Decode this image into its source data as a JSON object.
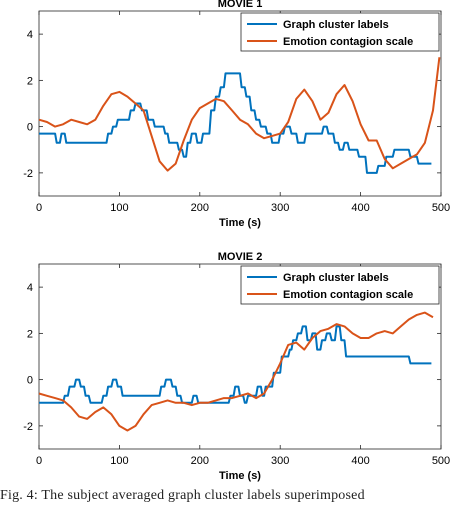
{
  "chart_data": [
    {
      "type": "line",
      "title": "MOVIE 1",
      "xlabel": "Time (s)",
      "ylabel": "",
      "xlim": [
        0,
        500
      ],
      "ylim": [
        -3,
        5
      ],
      "xticks": [
        "0",
        "100",
        "200",
        "300",
        "400",
        "500"
      ],
      "yticks": [
        "-2",
        "0",
        "2",
        "4"
      ],
      "legend_position": "top-right",
      "series": [
        {
          "name": "Graph cluster labels",
          "color": "#0072BD",
          "x": [
            0,
            20,
            22,
            26,
            28,
            32,
            34,
            40,
            80,
            84,
            86,
            90,
            92,
            96,
            98,
            112,
            114,
            118,
            120,
            126,
            128,
            134,
            136,
            142,
            144,
            155,
            157,
            160,
            162,
            172,
            174,
            178,
            180,
            183,
            185,
            188,
            190,
            195,
            197,
            202,
            204,
            212,
            214,
            218,
            220,
            224,
            226,
            230,
            232,
            250,
            252,
            256,
            258,
            262,
            264,
            268,
            270,
            274,
            276,
            282,
            284,
            288,
            290,
            298,
            300,
            304,
            306,
            312,
            314,
            320,
            322,
            330,
            332,
            352,
            354,
            358,
            360,
            366,
            368,
            372,
            374,
            378,
            380,
            384,
            386,
            396,
            398,
            406,
            408,
            420,
            422,
            430,
            432,
            440,
            442,
            460,
            462,
            470,
            472,
            478,
            480,
            488
          ],
          "y": [
            -0.3,
            -0.3,
            -0.7,
            -0.7,
            -0.3,
            -0.3,
            -0.7,
            -0.7,
            -0.7,
            -0.7,
            -0.3,
            -0.3,
            0.0,
            0.0,
            0.3,
            0.3,
            0.7,
            0.7,
            1.0,
            1.0,
            0.7,
            0.7,
            0.3,
            0.3,
            0.0,
            0.0,
            -0.3,
            -0.3,
            -0.7,
            -0.7,
            -1.0,
            -1.0,
            -1.3,
            -1.3,
            -0.7,
            -0.7,
            -0.3,
            -0.3,
            -0.7,
            -0.7,
            -0.3,
            -0.3,
            0.7,
            0.7,
            1.3,
            1.3,
            1.7,
            1.7,
            2.3,
            2.3,
            1.7,
            1.7,
            1.3,
            1.3,
            0.7,
            0.7,
            0.3,
            0.3,
            0.0,
            0.0,
            -0.3,
            -0.3,
            -0.7,
            -0.7,
            -0.3,
            -0.3,
            0.0,
            0.0,
            -0.3,
            -0.3,
            -0.7,
            -0.7,
            -0.3,
            -0.3,
            0.0,
            0.0,
            -0.3,
            -0.3,
            -0.7,
            -0.7,
            -1.0,
            -1.0,
            -0.7,
            -0.7,
            -1.0,
            -1.0,
            -1.3,
            -1.3,
            -2.0,
            -2.0,
            -1.7,
            -1.7,
            -1.3,
            -1.3,
            -1.0,
            -1.0,
            -1.3,
            -1.3,
            -1.6,
            -1.6,
            -1.6,
            -1.6
          ]
        },
        {
          "name": "Emotion contagion scale",
          "color": "#D95319",
          "x": [
            0,
            10,
            20,
            30,
            40,
            50,
            60,
            70,
            80,
            90,
            100,
            110,
            120,
            130,
            140,
            150,
            160,
            170,
            180,
            190,
            200,
            210,
            220,
            230,
            240,
            250,
            260,
            270,
            280,
            290,
            300,
            310,
            320,
            330,
            340,
            350,
            360,
            370,
            380,
            390,
            400,
            410,
            420,
            430,
            440,
            450,
            460,
            470,
            480,
            490,
            498
          ],
          "y": [
            0.3,
            0.2,
            0.0,
            0.1,
            0.3,
            0.2,
            0.1,
            0.3,
            0.9,
            1.4,
            1.5,
            1.3,
            1.0,
            0.7,
            -0.4,
            -1.5,
            -1.9,
            -1.6,
            -0.6,
            0.3,
            0.8,
            1.0,
            1.2,
            1.1,
            0.7,
            0.3,
            0.1,
            -0.3,
            -0.5,
            -0.4,
            -0.3,
            0.2,
            1.2,
            1.6,
            1.1,
            0.3,
            0.6,
            1.4,
            1.8,
            1.1,
            0.1,
            -0.6,
            -0.6,
            -1.4,
            -1.8,
            -1.6,
            -1.4,
            -1.2,
            -0.7,
            0.7,
            3.0
          ]
        }
      ]
    },
    {
      "type": "line",
      "title": "MOVIE 2",
      "xlabel": "Time (s)",
      "ylabel": "",
      "xlim": [
        0,
        500
      ],
      "ylim": [
        -3,
        5
      ],
      "xticks": [
        "0",
        "100",
        "200",
        "300",
        "400",
        "500"
      ],
      "yticks": [
        "-2",
        "0",
        "2",
        "4"
      ],
      "legend_position": "top-right",
      "series": [
        {
          "name": "Graph cluster labels",
          "color": "#0072BD",
          "x": [
            0,
            30,
            32,
            36,
            38,
            44,
            46,
            50,
            52,
            56,
            58,
            62,
            64,
            78,
            80,
            84,
            86,
            90,
            92,
            96,
            98,
            102,
            104,
            150,
            152,
            156,
            158,
            164,
            166,
            170,
            172,
            176,
            178,
            190,
            192,
            196,
            198,
            236,
            238,
            242,
            244,
            248,
            250,
            254,
            256,
            258,
            260,
            270,
            272,
            276,
            278,
            280,
            282,
            290,
            292,
            300,
            302,
            310,
            312,
            314,
            316,
            320,
            322,
            326,
            328,
            332,
            334,
            338,
            340,
            344,
            346,
            350,
            352,
            356,
            358,
            362,
            364,
            368,
            370,
            374,
            376,
            380,
            382,
            400,
            402,
            440,
            442,
            460,
            462,
            480,
            482,
            488
          ],
          "y": [
            -1.0,
            -1.0,
            -0.7,
            -0.7,
            -0.3,
            -0.3,
            0.0,
            0.0,
            -0.3,
            -0.3,
            -0.7,
            -0.7,
            -1.0,
            -1.0,
            -0.7,
            -0.7,
            -0.3,
            -0.3,
            0.0,
            0.0,
            -0.3,
            -0.3,
            -0.7,
            -0.7,
            -0.3,
            -0.3,
            0.0,
            0.0,
            -0.3,
            -0.3,
            -0.7,
            -0.7,
            -1.0,
            -1.0,
            -0.7,
            -0.7,
            -1.0,
            -1.0,
            -0.7,
            -0.7,
            -0.3,
            -0.3,
            -0.7,
            -0.7,
            -1.0,
            -1.0,
            -0.7,
            -0.7,
            -0.3,
            -0.3,
            -0.7,
            -0.7,
            -0.3,
            -0.3,
            0.3,
            0.3,
            1.0,
            1.0,
            1.3,
            1.3,
            1.7,
            1.7,
            2.0,
            2.0,
            2.3,
            2.3,
            1.7,
            1.7,
            2.0,
            2.0,
            1.3,
            1.3,
            1.7,
            1.7,
            2.0,
            2.0,
            1.7,
            1.7,
            2.3,
            2.3,
            1.7,
            1.7,
            1.0,
            1.0,
            1.0,
            1.0,
            1.0,
            1.0,
            0.7,
            0.7,
            0.7,
            0.7
          ]
        },
        {
          "name": "Emotion contagion scale",
          "color": "#D95319",
          "x": [
            0,
            10,
            20,
            30,
            40,
            50,
            60,
            70,
            80,
            90,
            100,
            110,
            120,
            130,
            140,
            150,
            160,
            170,
            180,
            190,
            200,
            210,
            220,
            230,
            240,
            250,
            260,
            270,
            280,
            290,
            300,
            310,
            320,
            330,
            340,
            350,
            360,
            370,
            380,
            390,
            400,
            410,
            420,
            430,
            440,
            450,
            460,
            470,
            480,
            490
          ],
          "y": [
            -0.6,
            -0.7,
            -0.8,
            -0.9,
            -1.2,
            -1.6,
            -1.7,
            -1.4,
            -1.2,
            -1.5,
            -2.0,
            -2.2,
            -2.0,
            -1.5,
            -1.1,
            -1.0,
            -0.9,
            -1.0,
            -1.0,
            -1.1,
            -1.0,
            -1.0,
            -0.9,
            -0.8,
            -0.8,
            -0.7,
            -0.6,
            -0.8,
            -0.6,
            0.0,
            0.7,
            1.5,
            1.6,
            1.3,
            1.8,
            2.1,
            2.2,
            2.4,
            2.3,
            2.0,
            1.8,
            1.8,
            2.0,
            2.1,
            2.0,
            2.3,
            2.6,
            2.8,
            2.9,
            2.7
          ]
        }
      ]
    }
  ],
  "caption": "Fig. 4: The subject averaged graph cluster labels superimposed"
}
